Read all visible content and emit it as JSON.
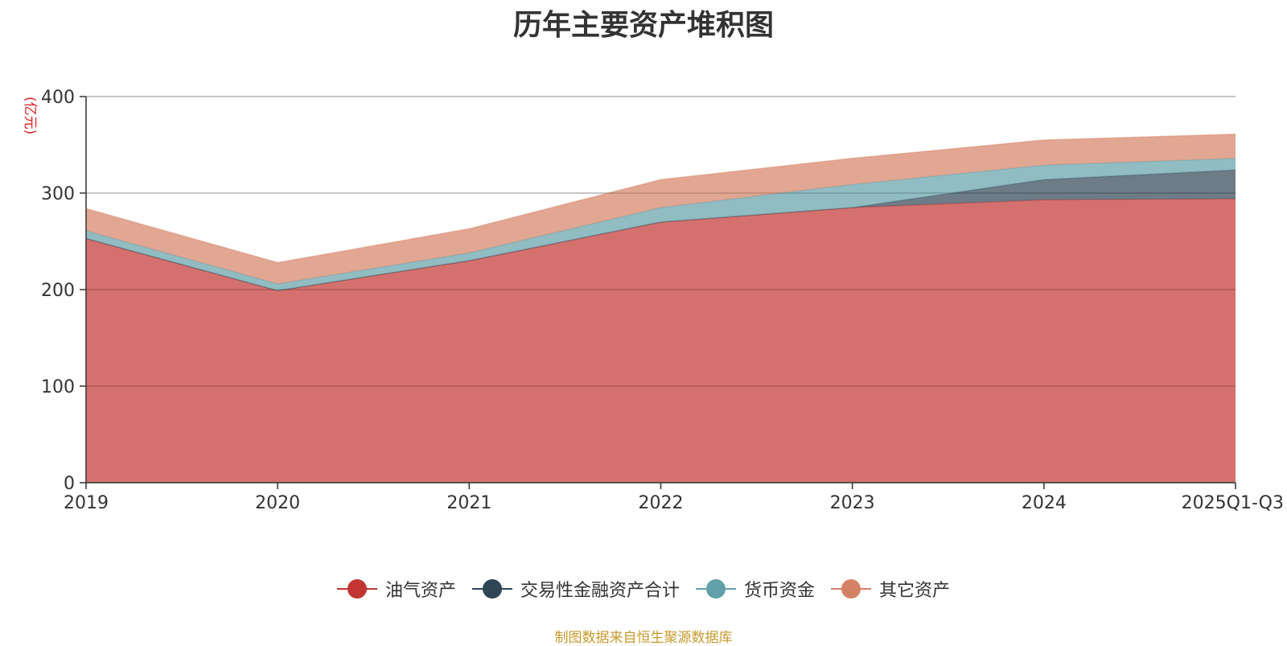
{
  "chart_data": {
    "type": "area",
    "stacked": true,
    "title": "历年主要资产堆积图",
    "ylabel": "(亿元)",
    "x": [
      "2019",
      "2020",
      "2021",
      "2022",
      "2023",
      "2024",
      "2025Q1-Q3"
    ],
    "ylim": [
      0,
      400
    ],
    "yticks": [
      0,
      100,
      200,
      300,
      400
    ],
    "grid": true,
    "legend_position": "bottom",
    "series": [
      {
        "name": "油气资产",
        "color": "#c23531",
        "values": [
          253,
          199,
          230,
          270,
          285,
          293,
          294
        ]
      },
      {
        "name": "交易性金融资产合计",
        "color": "#2f4554",
        "values": [
          0,
          0,
          0,
          0,
          0,
          21,
          30
        ]
      },
      {
        "name": "货币资金",
        "color": "#61a0a8",
        "values": [
          8,
          7,
          8,
          15,
          24,
          15,
          12
        ]
      },
      {
        "name": "其它资产",
        "color": "#d48265",
        "values": [
          23,
          22,
          25,
          29,
          27,
          26,
          25
        ]
      }
    ],
    "source": "制图数据来自恒生聚源数据库"
  }
}
